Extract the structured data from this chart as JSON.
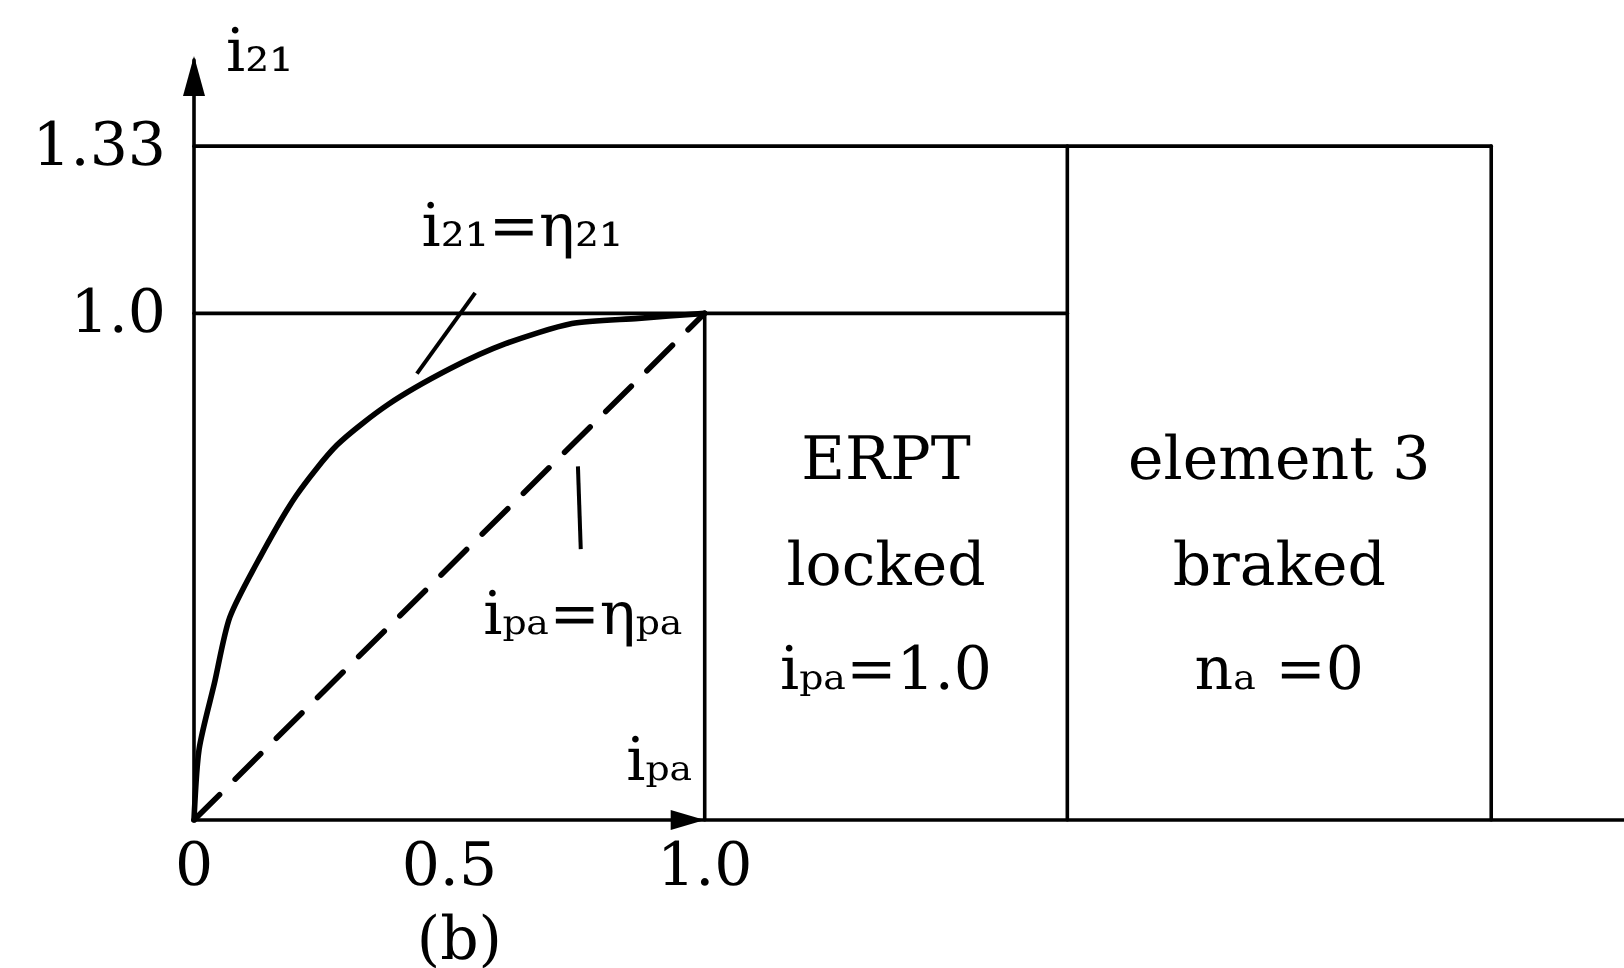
{
  "chart_data": {
    "type": "line",
    "title": "(b)",
    "xlabel": "iₚₐ",
    "ylabel": "i₂₁",
    "xlim": [
      0,
      2.8
    ],
    "ylim": [
      0,
      1.5
    ],
    "xticks": [
      0,
      0.5,
      {
        "value": 1,
        "label": "1.0"
      }
    ],
    "yticks": [
      {
        "value": 1,
        "label": "1.0"
      },
      1.33
    ],
    "grid": false,
    "marker": "none",
    "line_style": "solid",
    "series": [
      {
        "color": "#000000",
        "x": [
          0,
          0.01,
          0.04,
          0.07,
          0.13,
          0.2,
          0.28,
          0.38,
          0.5,
          0.61,
          0.74,
          0.87,
          1
        ],
        "values": [
          0,
          0.14,
          0.27,
          0.4,
          0.52,
          0.64,
          0.74,
          0.82,
          0.89,
          0.94,
          0.98,
          0.99,
          1
        ]
      },
      {
        "color": "#000000",
        "line_style": "dashed",
        "x": [
          0,
          1
        ],
        "values": [
          0,
          1
        ]
      },
      {
        "color": "#000000",
        "x": [
          0,
          1.71
        ],
        "values": [
          1,
          1
        ]
      },
      {
        "color": "#000000",
        "x": [
          1,
          1
        ],
        "values": [
          0,
          1
        ]
      },
      {
        "color": "#000000",
        "x": [
          1.71,
          1.71
        ],
        "values": [
          0,
          1.33
        ]
      },
      {
        "color": "#000000",
        "x": [
          0,
          2.54
        ],
        "values": [
          1.33,
          1.33
        ]
      },
      {
        "color": "#000000",
        "x": [
          2.54,
          2.54
        ],
        "values": [
          0,
          1.33
        ]
      }
    ],
    "annotations": [
      {
        "text": "i₂₁=η₂₁",
        "x": 0.4,
        "y": 0.83
      },
      {
        "text": "iₚₐ=ηₚₐ",
        "x": 0.75,
        "y": 0.75
      },
      "ERPT\nlocked\niₚₐ=1.0",
      "element 3\nbraked\nnₐ =0"
    ]
  }
}
